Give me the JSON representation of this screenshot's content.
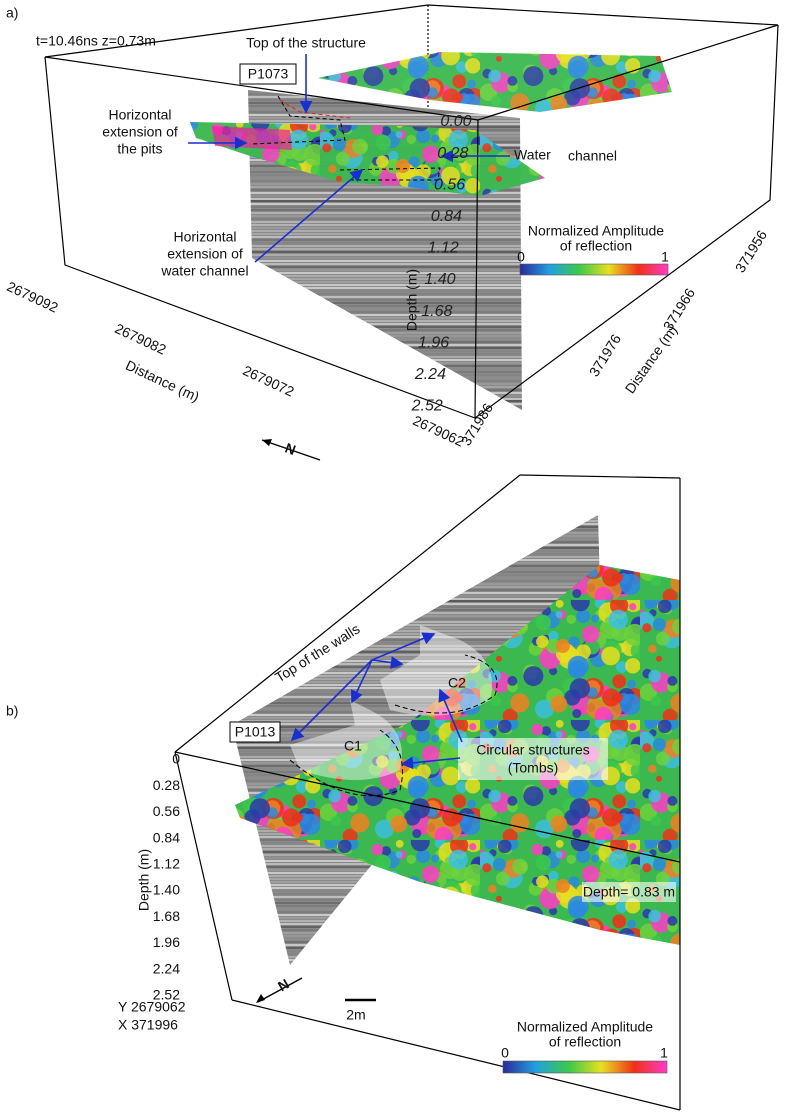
{
  "panel_a": {
    "label": "a)",
    "slice_info": "t=10.46ns z=0.73m",
    "top_structure": "Top of the structure",
    "profile": "P1073",
    "pits": [
      "Horizontal",
      "extension of",
      "the pits"
    ],
    "water": [
      "Water",
      "channel"
    ],
    "water_extension": [
      "Horizontal",
      "extension of",
      "water channel"
    ],
    "depth_ticks": [
      "0.00",
      "0.28",
      "0.56",
      "0.84",
      "1.12",
      "1.40",
      "1.68",
      "1.96",
      "2.24",
      "2.52"
    ],
    "depth_title": "Depth (m)",
    "colorbar": {
      "title": [
        "Normalized Amplitude",
        "of reflection"
      ],
      "min": "0",
      "max": "1"
    },
    "y_ticks": [
      "2679092",
      "2679082",
      "2679072",
      "2679062"
    ],
    "y_title": "Distance (m)",
    "x_ticks": [
      "371956",
      "371966",
      "371976",
      "371986"
    ],
    "x_title": "Distance (m)",
    "north": "N"
  },
  "panel_b": {
    "label": "b)",
    "top_walls": "Top of the walls",
    "profile": "P1013",
    "c1": "C1",
    "c2": "C2",
    "circular": [
      "Circular structures",
      "(Tombs)"
    ],
    "depth_ticks": [
      "0",
      "0.28",
      "0.56",
      "0.84",
      "1.12",
      "1.40",
      "1.68",
      "1.96",
      "2.24",
      "2.52"
    ],
    "depth_title": "Depth (m)",
    "slice_depth": "Depth= 0.83 m",
    "origin": [
      "Y 2679062",
      "X 371996"
    ],
    "scale": "2m",
    "colorbar": {
      "title": [
        "Normalized Amplitude",
        "of reflection"
      ],
      "min": "0",
      "max": "1"
    },
    "north": "N"
  }
}
